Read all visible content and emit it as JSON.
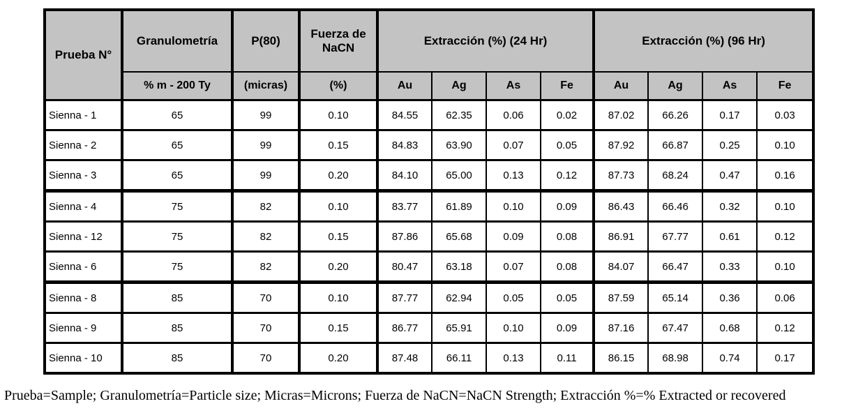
{
  "table": {
    "columns": [
      {
        "title": "Prueba N°",
        "subtitle": ""
      },
      {
        "title": "Granulometría",
        "subtitle": "% m - 200 Ty"
      },
      {
        "title": "P(80)",
        "subtitle": "(micras)"
      },
      {
        "title": "Fuerza de NaCN",
        "subtitle": "(%)"
      }
    ],
    "groups": [
      {
        "title": "Extracción (%) (24 Hr)",
        "subcols": [
          "Au",
          "Ag",
          "As",
          "Fe"
        ]
      },
      {
        "title": "Extracción (%) (96 Hr)",
        "subcols": [
          "Au",
          "Ag",
          "As",
          "Fe"
        ]
      }
    ],
    "rows": [
      {
        "group_start": false,
        "cells": [
          "Sienna - 1",
          "65",
          "99",
          "0.10",
          "84.55",
          "62.35",
          "0.06",
          "0.02",
          "87.02",
          "66.26",
          "0.17",
          "0.03"
        ]
      },
      {
        "group_start": false,
        "cells": [
          "Sienna - 2",
          "65",
          "99",
          "0.15",
          "84.83",
          "63.90",
          "0.07",
          "0.05",
          "87.92",
          "66.87",
          "0.25",
          "0.10"
        ]
      },
      {
        "group_start": false,
        "cells": [
          "Sienna - 3",
          "65",
          "99",
          "0.20",
          "84.10",
          "65.00",
          "0.13",
          "0.12",
          "87.73",
          "68.24",
          "0.47",
          "0.16"
        ]
      },
      {
        "group_start": true,
        "cells": [
          "Sienna - 4",
          "75",
          "82",
          "0.10",
          "83.77",
          "61.89",
          "0.10",
          "0.09",
          "86.43",
          "66.46",
          "0.32",
          "0.10"
        ]
      },
      {
        "group_start": false,
        "cells": [
          "Sienna - 12",
          "75",
          "82",
          "0.15",
          "87.86",
          "65.68",
          "0.09",
          "0.08",
          "86.91",
          "67.77",
          "0.61",
          "0.12"
        ]
      },
      {
        "group_start": false,
        "cells": [
          "Sienna - 6",
          "75",
          "82",
          "0.20",
          "80.47",
          "63.18",
          "0.07",
          "0.08",
          "84.07",
          "66.47",
          "0.33",
          "0.10"
        ]
      },
      {
        "group_start": true,
        "cells": [
          "Sienna - 8",
          "85",
          "70",
          "0.10",
          "87.77",
          "62.94",
          "0.05",
          "0.05",
          "87.59",
          "65.14",
          "0.36",
          "0.06"
        ]
      },
      {
        "group_start": false,
        "cells": [
          "Sienna - 9",
          "85",
          "70",
          "0.15",
          "86.77",
          "65.91",
          "0.10",
          "0.09",
          "87.16",
          "67.47",
          "0.68",
          "0.12"
        ]
      },
      {
        "group_start": false,
        "cells": [
          "Sienna - 10",
          "85",
          "70",
          "0.20",
          "87.48",
          "66.11",
          "0.13",
          "0.11",
          "86.15",
          "68.98",
          "0.74",
          "0.17"
        ]
      }
    ]
  },
  "footnote": "Prueba=Sample; Granulometría=Particle size; Micras=Microns; Fuerza de NaCN=NaCN Strength; Extracción %=% Extracted or recovered",
  "colors": {
    "header_bg": "#c3c3c3",
    "border": "#000000",
    "page_bg": "#ffffff"
  }
}
